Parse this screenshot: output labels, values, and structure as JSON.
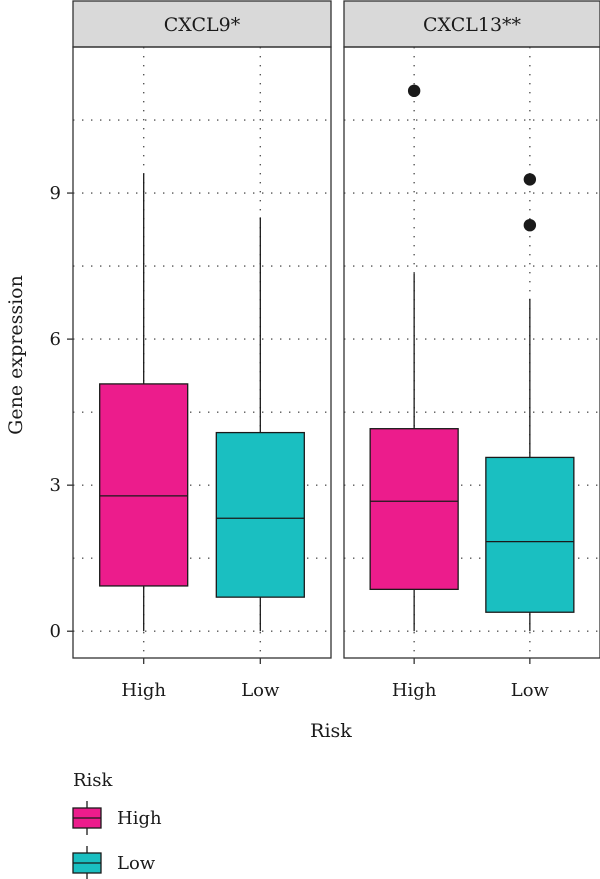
{
  "chart_data": {
    "type": "boxplot",
    "xlabel": "Risk",
    "ylabel": "Gene expression",
    "ylim": [
      -0.55,
      12.0
    ],
    "yticks": [
      0,
      3,
      6,
      9
    ],
    "categories": [
      "High",
      "Low"
    ],
    "grid": "dotted",
    "colors": {
      "High": "#ec1c8c",
      "Low": "#1abfc1"
    },
    "panels": [
      {
        "title": "CXCL9*",
        "boxes": [
          {
            "group": "High",
            "min": 0.0,
            "q1": 0.93,
            "median": 2.78,
            "q3": 5.08,
            "max": 9.4,
            "outliers": []
          },
          {
            "group": "Low",
            "min": 0.0,
            "q1": 0.7,
            "median": 2.32,
            "q3": 4.08,
            "max": 8.5,
            "outliers": []
          }
        ]
      },
      {
        "title": "CXCL13**",
        "boxes": [
          {
            "group": "High",
            "min": 0.0,
            "q1": 0.86,
            "median": 2.67,
            "q3": 4.16,
            "max": 7.35,
            "outliers": [
              11.1
            ]
          },
          {
            "group": "Low",
            "min": 0.0,
            "q1": 0.39,
            "median": 1.84,
            "q3": 3.57,
            "max": 6.83,
            "outliers": [
              9.28,
              8.34
            ]
          }
        ]
      }
    ],
    "legend": {
      "title": "Risk",
      "placement": "bottom-left",
      "entries": [
        "High",
        "Low"
      ]
    }
  }
}
